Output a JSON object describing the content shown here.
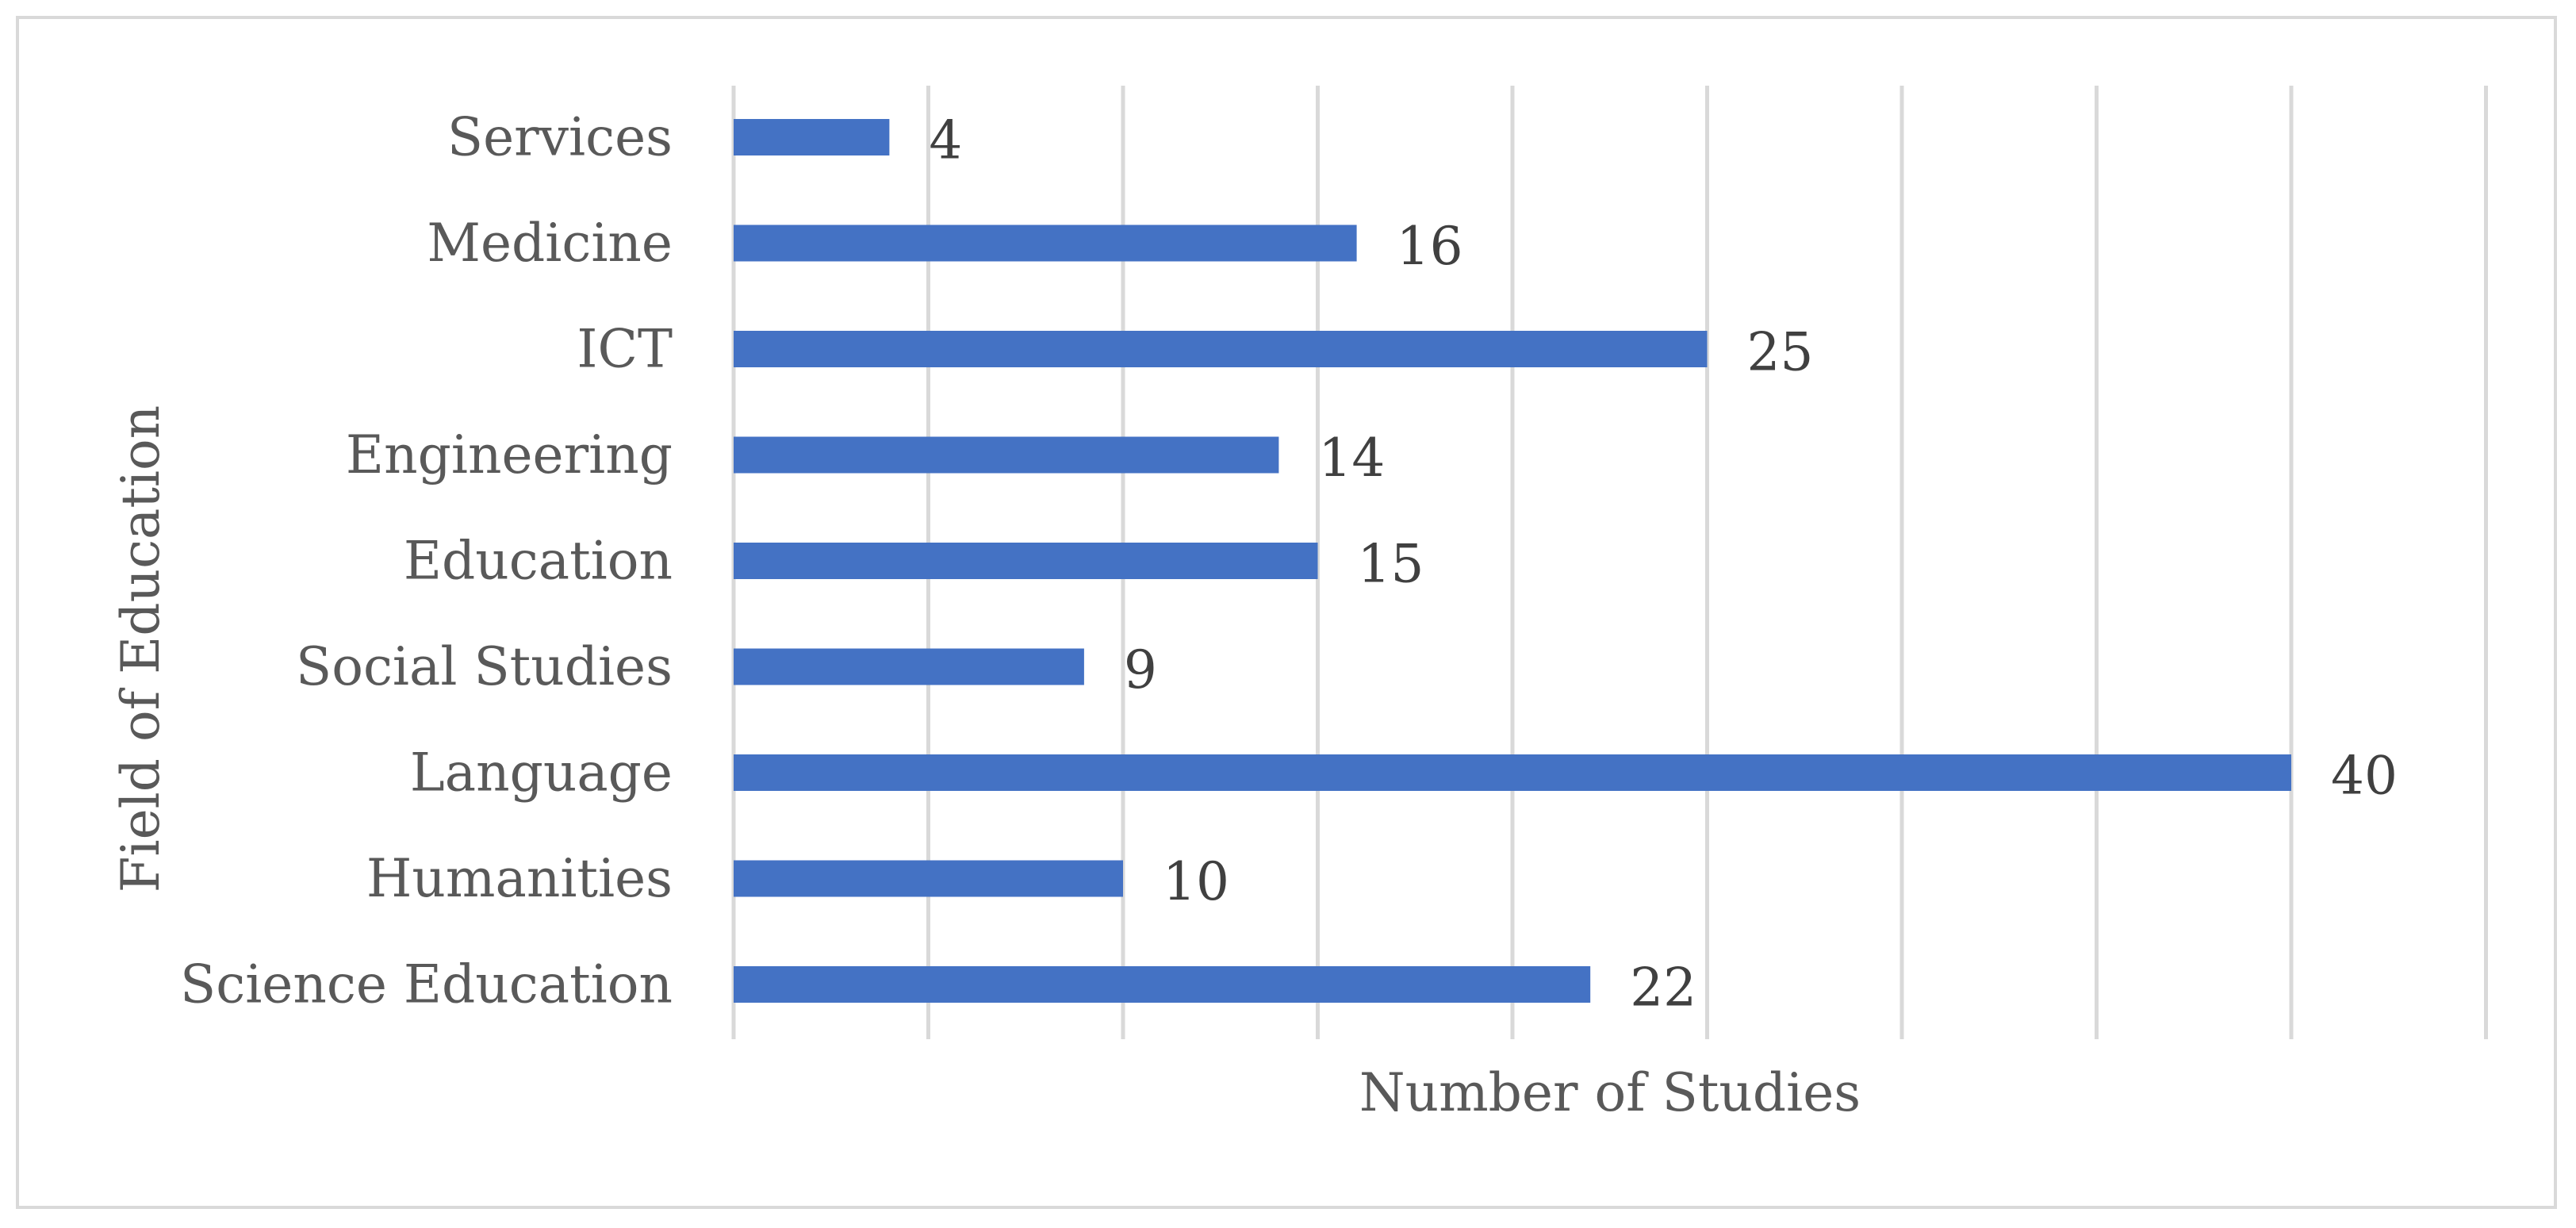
{
  "chart_data": {
    "type": "bar",
    "orientation": "horizontal",
    "title": "",
    "xlabel": "Number of Studies",
    "ylabel": "Field of Education",
    "categories": [
      "Science Education",
      "Humanities",
      "Language",
      "Social Studies",
      "Education",
      "Engineering",
      "ICT",
      "Medicine",
      "Services"
    ],
    "values": [
      22,
      10,
      40,
      9,
      15,
      14,
      25,
      16,
      4
    ],
    "xlim": [
      0,
      45
    ],
    "x_gridline_step": 5,
    "x_tick_labels_shown": false,
    "grid": true,
    "legend": "none",
    "data_labels": true
  },
  "colors": {
    "bar": "#4472C4",
    "grid": "#d9d9d9",
    "axis_text": "#595959",
    "value_text": "#404040",
    "frame": "#d9d9d9"
  }
}
